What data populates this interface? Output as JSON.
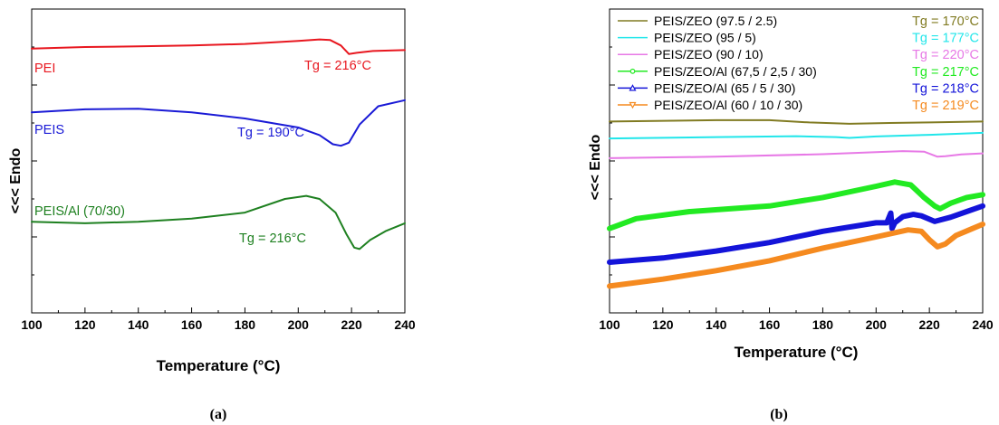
{
  "chart_data": [
    {
      "type": "line",
      "panel_label": "(a)",
      "xlabel": "Temperature (°C)",
      "ylabel": "<<< Endo",
      "xlim": [
        100,
        240
      ],
      "xticks": [
        "100",
        "120",
        "140",
        "160",
        "180",
        "200",
        "220",
        "240"
      ],
      "y_tick_labels": false,
      "series": [
        {
          "name": "PEI",
          "color": "#e8171f",
          "x": [
            100,
            120,
            140,
            160,
            180,
            200,
            208,
            212,
            216,
            219,
            222,
            228,
            240
          ],
          "y": [
            0.87,
            0.875,
            0.877,
            0.88,
            0.885,
            0.895,
            0.9,
            0.898,
            0.88,
            0.852,
            0.856,
            0.862,
            0.865
          ],
          "tg_label": "Tg = 216°C"
        },
        {
          "name": "PEIS",
          "color": "#1a1ad6",
          "x": [
            100,
            120,
            140,
            160,
            180,
            200,
            208,
            213,
            216,
            219,
            223,
            230,
            240
          ],
          "y": [
            0.66,
            0.67,
            0.672,
            0.66,
            0.64,
            0.61,
            0.585,
            0.555,
            0.55,
            0.56,
            0.62,
            0.68,
            0.7
          ],
          "tg_label": "Tg = 190°C"
        },
        {
          "name": "PEIS/Al (70/30)",
          "color": "#1e8020",
          "x": [
            100,
            120,
            140,
            160,
            180,
            195,
            203,
            208,
            214,
            218,
            221,
            223,
            227,
            233,
            240
          ],
          "y": [
            0.3,
            0.295,
            0.3,
            0.31,
            0.33,
            0.375,
            0.385,
            0.375,
            0.33,
            0.26,
            0.215,
            0.21,
            0.24,
            0.27,
            0.295
          ],
          "tg_label": "Tg = 216°C"
        }
      ]
    },
    {
      "type": "line",
      "panel_label": "(b)",
      "xlabel": "Temperature (°C)",
      "ylabel": "<<< Endo",
      "xlim": [
        100,
        240
      ],
      "xticks": [
        "100",
        "120",
        "140",
        "160",
        "180",
        "200",
        "220",
        "240"
      ],
      "y_tick_labels": false,
      "series": [
        {
          "name": "PEIS/ZEO (97.5 / 2.5)",
          "color": "#817b22",
          "tg_label": "Tg = 170°C",
          "x": [
            100,
            140,
            160,
            175,
            190,
            205,
            220,
            240
          ],
          "y": [
            0.6,
            0.605,
            0.605,
            0.597,
            0.592,
            0.595,
            0.597,
            0.6
          ]
        },
        {
          "name": "PEIS/ZEO (95 / 5)",
          "color": "#22e6ea",
          "tg_label": "Tg = 177°C",
          "x": [
            100,
            140,
            170,
            185,
            190,
            200,
            220,
            240
          ],
          "y": [
            0.54,
            0.545,
            0.548,
            0.545,
            0.542,
            0.547,
            0.553,
            0.56
          ]
        },
        {
          "name": "PEIS/ZEO (90 / 10)",
          "color": "#e779e6",
          "tg_label": "Tg = 220°C",
          "x": [
            100,
            140,
            180,
            210,
            218,
            223,
            226,
            232,
            240
          ],
          "y": [
            0.47,
            0.475,
            0.484,
            0.495,
            0.493,
            0.475,
            0.477,
            0.483,
            0.487
          ]
        },
        {
          "name": "PEIS/ZEO/Al (67,5 / 2,5 / 30)",
          "color": "#22ea22",
          "marker": "circle",
          "tg_label": "Tg = 217°C",
          "x": [
            100,
            110,
            130,
            160,
            180,
            200,
            207,
            213,
            218,
            222,
            224,
            228,
            234,
            240
          ],
          "y": [
            0.22,
            0.255,
            0.28,
            0.3,
            0.33,
            0.37,
            0.385,
            0.375,
            0.33,
            0.3,
            0.29,
            0.31,
            0.33,
            0.34
          ]
        },
        {
          "name": "PEIS/ZEO/Al (65 / 5 / 30)",
          "color": "#1414d9",
          "marker": "triangle-up",
          "tg_label": "Tg = 218°C",
          "x": [
            100,
            120,
            140,
            160,
            180,
            200,
            204,
            205.5,
            206,
            207,
            210,
            214,
            217,
            222,
            228,
            234,
            240
          ],
          "y": [
            0.1,
            0.115,
            0.14,
            0.17,
            0.21,
            0.24,
            0.24,
            0.275,
            0.22,
            0.24,
            0.262,
            0.27,
            0.265,
            0.245,
            0.26,
            0.28,
            0.3
          ]
        },
        {
          "name": "PEIS/ZEO/Al (60 / 10 / 30)",
          "color": "#f58a1f",
          "marker": "triangle-down",
          "tg_label": "Tg = 219°C",
          "x": [
            100,
            120,
            140,
            160,
            180,
            200,
            212,
            217,
            220,
            223,
            226,
            230,
            235,
            240
          ],
          "y": [
            0.015,
            0.04,
            0.07,
            0.105,
            0.15,
            0.19,
            0.215,
            0.21,
            0.18,
            0.155,
            0.165,
            0.195,
            0.215,
            0.235
          ]
        }
      ]
    }
  ]
}
